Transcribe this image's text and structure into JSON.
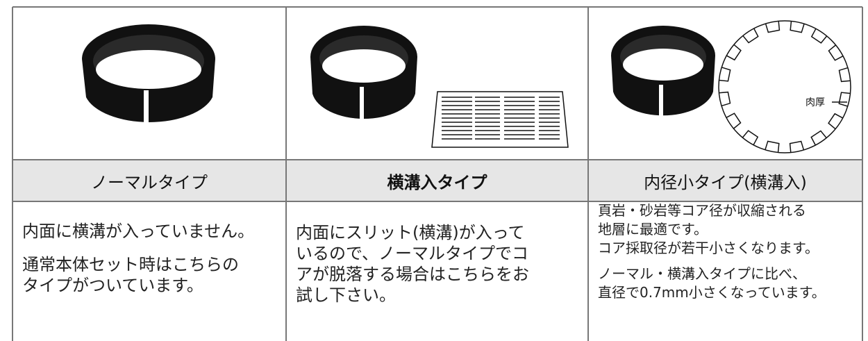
{
  "table": {
    "diagram_label": "肉厚",
    "headers": [
      "ノーマルタイプ",
      "横溝入タイプ",
      "内径小タイプ(横溝入)"
    ],
    "descriptions": [
      [
        [
          "内面に横溝が入っていません。"
        ],
        [
          "通常本体セット時はこちらの",
          "タイプがついています。"
        ]
      ],
      [
        [
          "内面にスリット(横溝)が入って",
          "いるので、ノーマルタイプでコ",
          "アが脱落する場合はこちらをお",
          "試し下さい。"
        ]
      ],
      [
        [
          "頁岩・砂岩等コア径が収縮される",
          "地層に最適です。",
          "コア採取径が若干小さくなります。"
        ],
        [
          "ノーマル・横溝入タイプに比べ、",
          "直径で0.7mm小さくなっています。"
        ]
      ]
    ]
  }
}
